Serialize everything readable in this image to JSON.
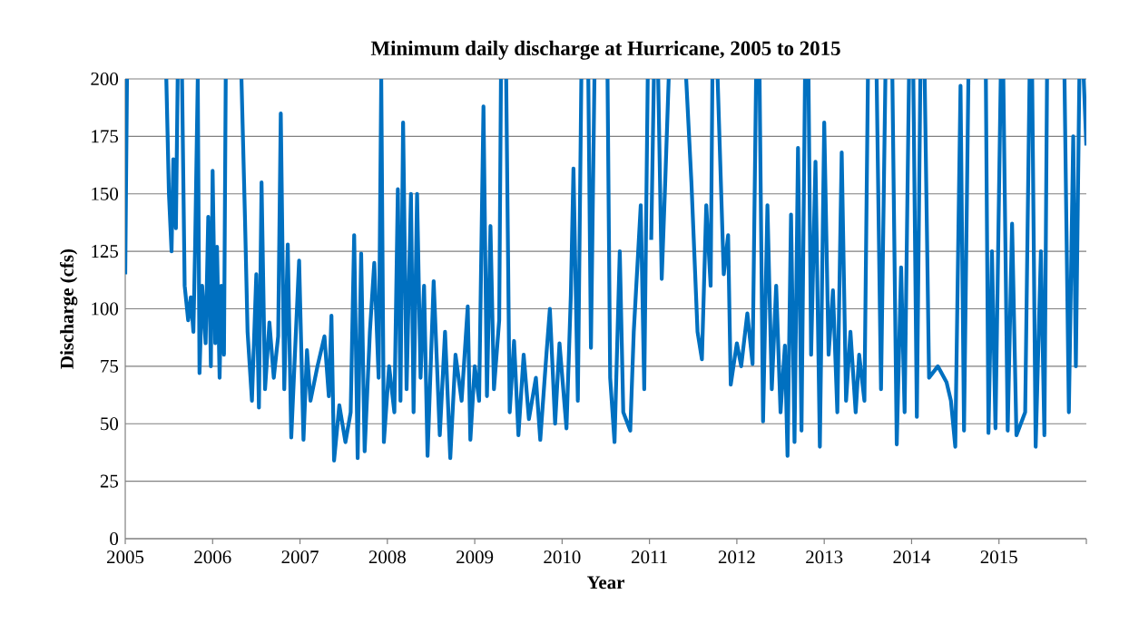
{
  "chart_data": {
    "type": "line",
    "title": "Minimum daily discharge at Hurricane, 2005 to 2015",
    "xlabel": "Year",
    "ylabel": "Discharge (cfs)",
    "x": [
      2005.0,
      2005.02,
      2005.2,
      2005.47,
      2005.5,
      2005.53,
      2005.55,
      2005.58,
      2005.6,
      2005.62,
      2005.65,
      2005.68,
      2005.72,
      2005.75,
      2005.78,
      2005.8,
      2005.83,
      2005.85,
      2005.88,
      2005.92,
      2005.95,
      2005.98,
      2006.0,
      2006.03,
      2006.05,
      2006.08,
      2006.1,
      2006.13,
      2006.15,
      2006.2,
      2006.33,
      2006.37,
      2006.4,
      2006.45,
      2006.5,
      2006.53,
      2006.56,
      2006.6,
      2006.65,
      2006.7,
      2006.75,
      2006.78,
      2006.82,
      2006.86,
      2006.9,
      2006.95,
      2006.99,
      2007.04,
      2007.08,
      2007.12,
      2007.2,
      2007.28,
      2007.33,
      2007.36,
      2007.39,
      2007.45,
      2007.52,
      2007.58,
      2007.62,
      2007.66,
      2007.7,
      2007.74,
      2007.8,
      2007.85,
      2007.9,
      2007.93,
      2007.96,
      2008.02,
      2008.08,
      2008.12,
      2008.15,
      2008.18,
      2008.22,
      2008.27,
      2008.3,
      2008.34,
      2008.38,
      2008.42,
      2008.46,
      2008.53,
      2008.6,
      2008.66,
      2008.72,
      2008.78,
      2008.85,
      2008.92,
      2008.95,
      2009.0,
      2009.05,
      2009.1,
      2009.14,
      2009.18,
      2009.22,
      2009.28,
      2009.3,
      2009.33,
      2009.36,
      2009.4,
      2009.45,
      2009.5,
      2009.56,
      2009.62,
      2009.7,
      2009.75,
      2009.82,
      2009.86,
      2009.92,
      2009.97,
      2010.05,
      2010.1,
      2010.13,
      2010.18,
      2010.22,
      2010.26,
      2010.3,
      2010.33,
      2010.37,
      2010.45,
      2010.52,
      2010.55,
      2010.6,
      2010.66,
      2010.7,
      2010.78,
      2010.82,
      2010.9,
      2010.94,
      2010.98,
      2011.0,
      2011.02,
      2011.05,
      2011.08,
      2011.1,
      2011.14,
      2011.18,
      2011.22,
      2011.3,
      2011.42,
      2011.48,
      2011.55,
      2011.6,
      2011.65,
      2011.7,
      2011.72,
      2011.75,
      2011.78,
      2011.85,
      2011.9,
      2011.93,
      2012.0,
      2012.05,
      2012.12,
      2012.18,
      2012.22,
      2012.24,
      2012.26,
      2012.3,
      2012.35,
      2012.4,
      2012.45,
      2012.5,
      2012.55,
      2012.58,
      2012.62,
      2012.66,
      2012.7,
      2012.74,
      2012.78,
      2012.8,
      2012.82,
      2012.85,
      2012.9,
      2012.95,
      2013.0,
      2013.05,
      2013.1,
      2013.15,
      2013.2,
      2013.25,
      2013.3,
      2013.36,
      2013.4,
      2013.46,
      2013.5,
      2013.55,
      2013.6,
      2013.65,
      2013.7,
      2013.74,
      2013.78,
      2013.83,
      2013.88,
      2013.92,
      2013.97,
      2014.0,
      2014.02,
      2014.06,
      2014.1,
      2014.12,
      2014.15,
      2014.2,
      2014.3,
      2014.4,
      2014.45,
      2014.5,
      2014.56,
      2014.6,
      2014.65,
      2014.75,
      2014.85,
      2014.88,
      2014.92,
      2014.96,
      2015.02,
      2015.03,
      2015.05,
      2015.1,
      2015.15,
      2015.2,
      2015.3,
      2015.35,
      2015.36,
      2015.38,
      2015.42,
      2015.48,
      2015.52,
      2015.55,
      2015.65,
      2015.75,
      2015.8,
      2015.85,
      2015.88,
      2015.92,
      2015.95,
      2015.97,
      2016.0
    ],
    "values": [
      115,
      200,
      null,
      200,
      150,
      125,
      165,
      135,
      200,
      null,
      200,
      110,
      95,
      105,
      90,
      128,
      200,
      72,
      110,
      85,
      140,
      75,
      160,
      85,
      127,
      70,
      110,
      80,
      200,
      null,
      200,
      140,
      90,
      60,
      115,
      57,
      155,
      65,
      94,
      70,
      88,
      185,
      65,
      128,
      44,
      87,
      121,
      43,
      82,
      60,
      75,
      88,
      62,
      97,
      34,
      58,
      42,
      55,
      132,
      35,
      124,
      38,
      90,
      120,
      70,
      200,
      42,
      75,
      55,
      152,
      60,
      181,
      65,
      150,
      55,
      150,
      70,
      110,
      36,
      112,
      45,
      90,
      35,
      80,
      60,
      101,
      43,
      75,
      60,
      188,
      62,
      136,
      65,
      95,
      200,
      null,
      200,
      55,
      86,
      45,
      80,
      52,
      70,
      43,
      80,
      100,
      50,
      85,
      48,
      106,
      161,
      60,
      200,
      null,
      200,
      83,
      200,
      null,
      200,
      70,
      42,
      125,
      55,
      47,
      90,
      145,
      65,
      200,
      null,
      130,
      200,
      null,
      200,
      113,
      155,
      200,
      null,
      200,
      155,
      90,
      78,
      145,
      110,
      200,
      null,
      200,
      115,
      132,
      67,
      85,
      75,
      98,
      76,
      200,
      null,
      200,
      51,
      145,
      65,
      110,
      55,
      84,
      36,
      141,
      42,
      170,
      47,
      200,
      null,
      200,
      80,
      164,
      40,
      181,
      80,
      108,
      55,
      168,
      60,
      90,
      55,
      80,
      60,
      200,
      null,
      200,
      65,
      200,
      null,
      200,
      41,
      118,
      55,
      200,
      null,
      200,
      53,
      200,
      null,
      200,
      70,
      75,
      68,
      60,
      40,
      197,
      47,
      200,
      null,
      200,
      46,
      125,
      48,
      200,
      null,
      200,
      47,
      137,
      45,
      55,
      200,
      null,
      200,
      40,
      125,
      45,
      200,
      null,
      200,
      55,
      175,
      75,
      200,
      null,
      200,
      171
    ],
    "color": "#0070c0",
    "xlim": [
      2005,
      2016
    ],
    "ylim": [
      0,
      200
    ],
    "xticks": [
      2005,
      2006,
      2007,
      2008,
      2009,
      2010,
      2011,
      2012,
      2013,
      2014,
      2015,
      {
        "value": 2016,
        "label": null
      }
    ],
    "yticks": [
      0,
      25,
      50,
      75,
      100,
      125,
      150,
      175,
      200
    ],
    "grid": "y"
  }
}
